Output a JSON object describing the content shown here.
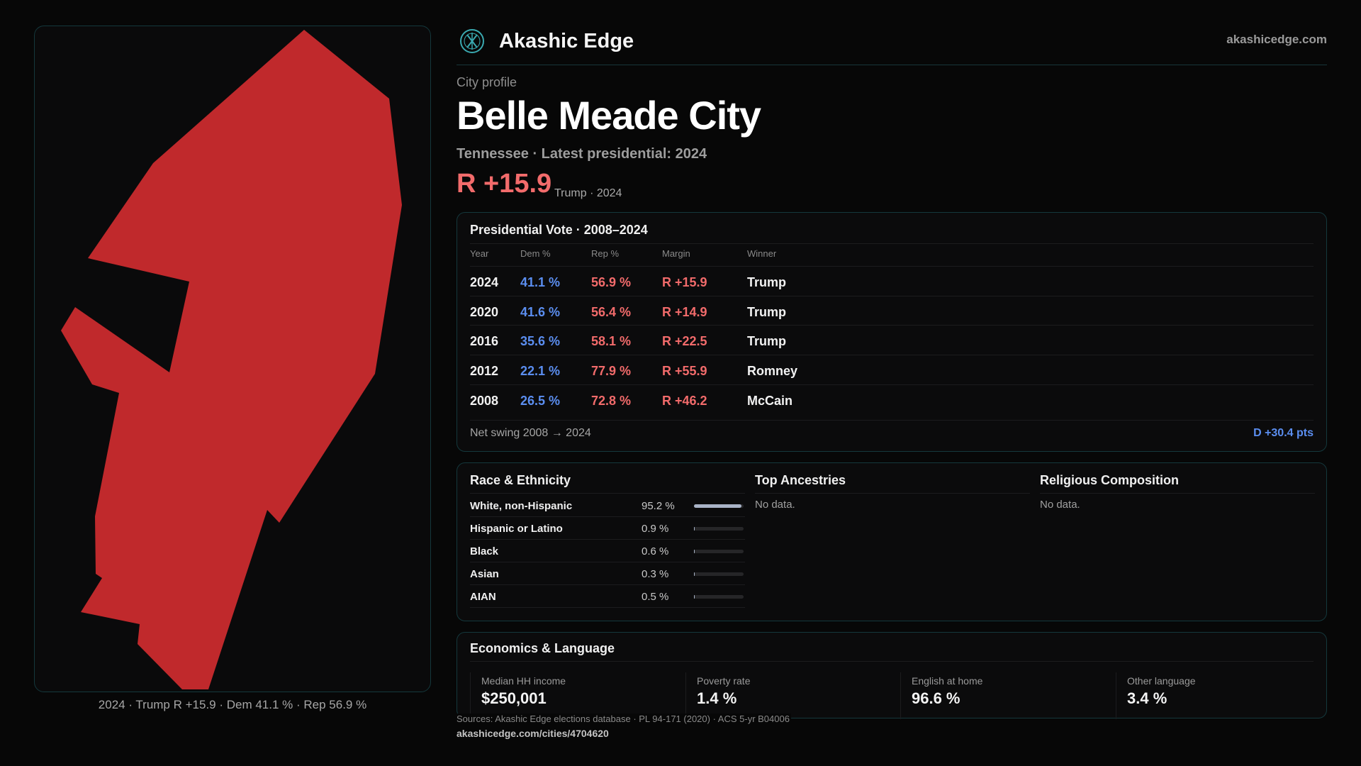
{
  "map": {
    "caption": "2024 · Trump R +15.9 · Dem 41.1 % · Rep 56.9 %",
    "fill_color": "#c0292c",
    "border_color": "#14383c"
  },
  "header": {
    "brand": "Akashic Edge",
    "site": "akashicedge.com",
    "logo_icon": "akashic-edge-logo-icon",
    "accent_color": "#3aa9b0"
  },
  "profile": {
    "kicker": "City profile",
    "title": "Belle Meade City",
    "subtitle": "Tennessee · Latest presidential: 2024",
    "margin": "R +15.9",
    "margin_note": "Trump · 2024",
    "rep_color": "#f26b6b",
    "dem_color": "#5b8ef0"
  },
  "vote": {
    "title": "Presidential Vote · 2008–2024",
    "headers": [
      "Year",
      "Dem %",
      "Rep %",
      "Margin",
      "Winner"
    ],
    "rows": [
      {
        "year": "2024",
        "dem": "41.1 %",
        "rep": "56.9 %",
        "margin": "R +15.9",
        "winner": "Trump"
      },
      {
        "year": "2020",
        "dem": "41.6 %",
        "rep": "56.4 %",
        "margin": "R +14.9",
        "winner": "Trump"
      },
      {
        "year": "2016",
        "dem": "35.6 %",
        "rep": "58.1 %",
        "margin": "R +22.5",
        "winner": "Trump"
      },
      {
        "year": "2012",
        "dem": "22.1 %",
        "rep": "77.9 %",
        "margin": "R +55.9",
        "winner": "Romney"
      },
      {
        "year": "2008",
        "dem": "26.5 %",
        "rep": "72.8 %",
        "margin": "R +46.2",
        "winner": "McCain"
      }
    ],
    "swing_label": "Net swing 2008 → 2024",
    "swing_value": "D +30.4 pts"
  },
  "race": {
    "title": "Race & Ethnicity",
    "rows": [
      {
        "name": "White, non-Hispanic",
        "pct": "95.2 %",
        "share": 0.952
      },
      {
        "name": "Hispanic or Latino",
        "pct": "0.9 %",
        "share": 0.009
      },
      {
        "name": "Black",
        "pct": "0.6 %",
        "share": 0.006
      },
      {
        "name": "Asian",
        "pct": "0.3 %",
        "share": 0.003
      },
      {
        "name": "AIAN",
        "pct": "0.5 %",
        "share": 0.005
      }
    ]
  },
  "ancestries": {
    "title": "Top Ancestries",
    "empty": "No data."
  },
  "religion": {
    "title": "Religious Composition",
    "empty": "No data."
  },
  "economics": {
    "title": "Economics & Language",
    "stats": [
      {
        "label": "Median HH income",
        "value": "$250,001"
      },
      {
        "label": "Poverty rate",
        "value": "1.4 %"
      },
      {
        "label": "English at home",
        "value": "96.6 %"
      },
      {
        "label": "Other language",
        "value": "3.4 %"
      }
    ]
  },
  "footer": {
    "sources": "Sources: Akashic Edge elections database · PL 94-171 (2020) · ACS 5-yr B04006",
    "url": "akashicedge.com/cities/4704620"
  }
}
